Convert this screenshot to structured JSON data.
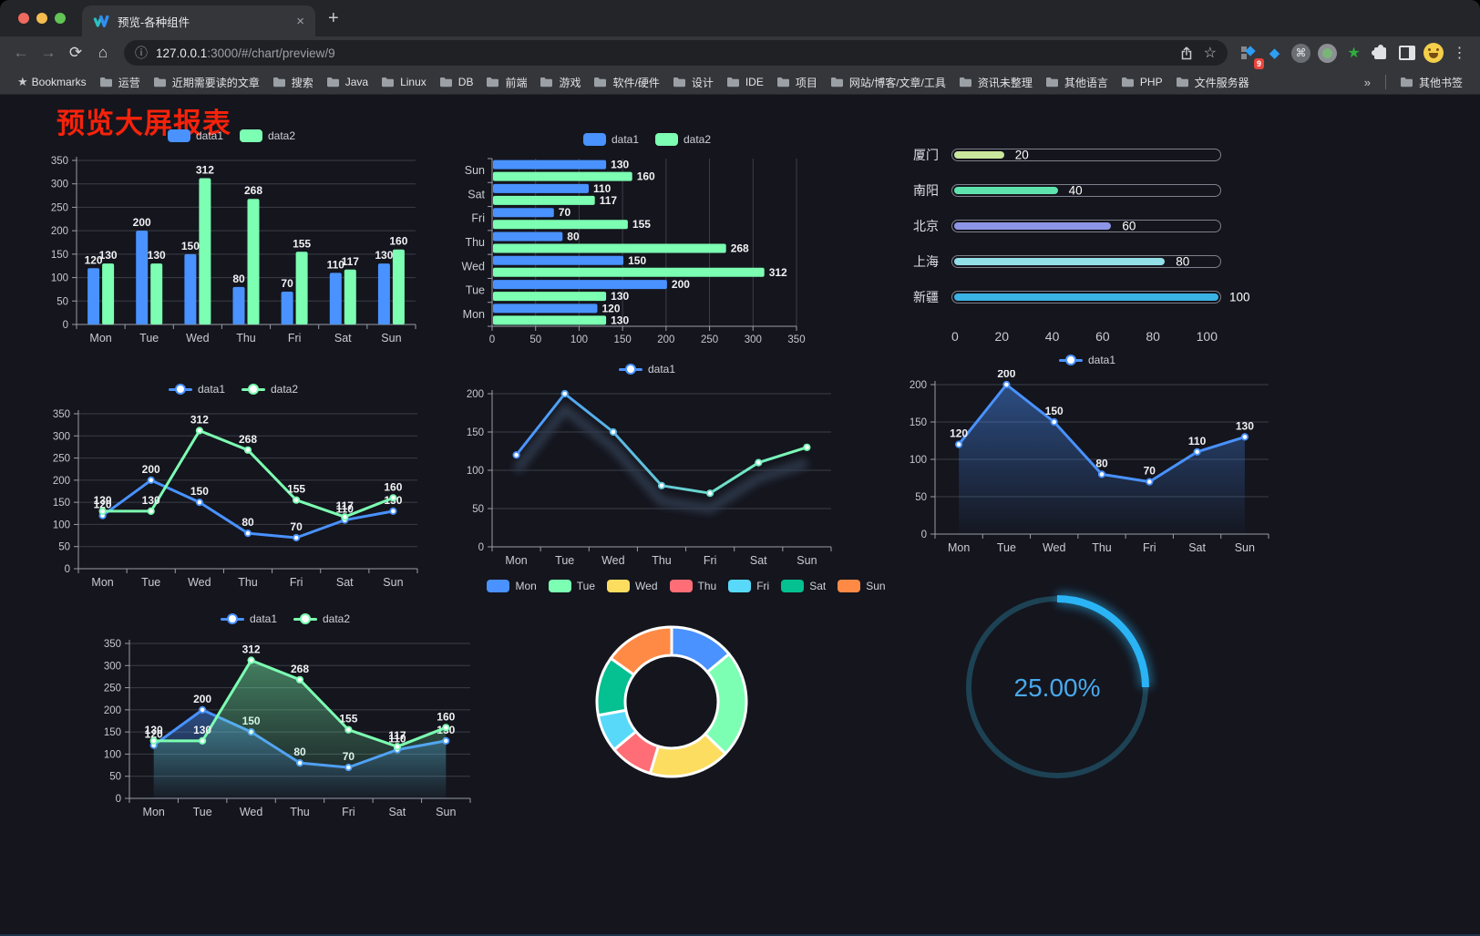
{
  "browser": {
    "tab": {
      "title": "预览-各种组件"
    },
    "icons": {
      "back": "←",
      "forward": "→",
      "reload": "⟳",
      "home": "⌂",
      "info": "ⓘ",
      "star": "☆",
      "menu": "⋮",
      "close_tab": "×",
      "new_tab": "+",
      "gem": "◆",
      "command": "⌘",
      "green_star": "★",
      "bookmarks_star": "★"
    },
    "address": {
      "host": "127.0.0.1",
      "path": ":3000/#/chart/preview/9"
    },
    "extensions_badge": "9",
    "bookmarks_bar": {
      "label": "Bookmarks",
      "items": [
        "运营",
        "近期需要读的文章",
        "搜索",
        "Java",
        "Linux",
        "DB",
        "前端",
        "游戏",
        "软件/硬件",
        "设计",
        "IDE",
        "项目",
        "网站/博客/文章/工具",
        "资讯未整理",
        "其他语言",
        "PHP",
        "文件服务器"
      ],
      "overflow": "»",
      "other": "其他书签"
    }
  },
  "page": {
    "title": "预览大屏报表",
    "title_color": "#f5220b"
  },
  "chart_data": [
    {
      "name": "grouped-bar",
      "type": "bar",
      "legend_position": "top",
      "grid": true,
      "categories": [
        "Mon",
        "Tue",
        "Wed",
        "Thu",
        "Fri",
        "Sat",
        "Sun"
      ],
      "ylim": [
        0,
        350
      ],
      "ytick": 50,
      "labels": true,
      "series": [
        {
          "name": "data1",
          "color": "#4992ff",
          "values": [
            120,
            200,
            150,
            80,
            70,
            110,
            130
          ]
        },
        {
          "name": "data2",
          "color": "#7cffb2",
          "values": [
            130,
            130,
            312,
            268,
            155,
            117,
            160
          ]
        }
      ]
    },
    {
      "name": "horizontal-bar",
      "type": "hbar",
      "legend_position": "top",
      "grid": true,
      "categories": [
        "Sun",
        "Sat",
        "Fri",
        "Thu",
        "Wed",
        "Tue",
        "Mon"
      ],
      "xlim": [
        0,
        350
      ],
      "xtick": 50,
      "labels": true,
      "series": [
        {
          "name": "data1",
          "color": "#4992ff",
          "values": [
            130,
            110,
            70,
            80,
            150,
            200,
            120
          ]
        },
        {
          "name": "data2",
          "color": "#7cffb2",
          "values": [
            160,
            117,
            155,
            268,
            312,
            130,
            130
          ]
        }
      ]
    },
    {
      "name": "progress-bars",
      "type": "progress",
      "max": 100,
      "xticks": [
        0,
        20,
        40,
        60,
        80,
        100
      ],
      "items": [
        {
          "label": "厦门",
          "value": 20,
          "color": "#c8e69c"
        },
        {
          "label": "南阳",
          "value": 40,
          "color": "#5fe3ae"
        },
        {
          "label": "北京",
          "value": 60,
          "color": "#8d95e6"
        },
        {
          "label": "上海",
          "value": 80,
          "color": "#93dfe8"
        },
        {
          "label": "新疆",
          "value": 100,
          "color": "#3ab2e4"
        }
      ]
    },
    {
      "name": "multi-line",
      "type": "line",
      "legend_position": "top",
      "grid": true,
      "categories": [
        "Mon",
        "Tue",
        "Wed",
        "Thu",
        "Fri",
        "Sat",
        "Sun"
      ],
      "ylim": [
        0,
        350
      ],
      "ytick": 50,
      "labels": true,
      "series": [
        {
          "name": "data1",
          "color": "#4992ff",
          "values": [
            120,
            200,
            150,
            80,
            70,
            110,
            130
          ]
        },
        {
          "name": "data2",
          "color": "#7cffb2",
          "values": [
            130,
            130,
            312,
            268,
            155,
            117,
            160
          ]
        }
      ]
    },
    {
      "name": "gradient-line",
      "type": "line",
      "legend_position": "top",
      "grid": true,
      "shadow": true,
      "categories": [
        "Mon",
        "Tue",
        "Wed",
        "Thu",
        "Fri",
        "Sat",
        "Sun"
      ],
      "ylim": [
        0,
        200
      ],
      "ytick": 50,
      "labels": false,
      "series": [
        {
          "name": "data1",
          "color": [
            "#4992ff",
            "#7cffb2"
          ],
          "values": [
            120,
            200,
            150,
            80,
            70,
            110,
            130
          ]
        }
      ]
    },
    {
      "name": "area-line",
      "type": "line",
      "legend_position": "top",
      "grid": true,
      "categories": [
        "Mon",
        "Tue",
        "Wed",
        "Thu",
        "Fri",
        "Sat",
        "Sun"
      ],
      "ylim": [
        0,
        200
      ],
      "ytick": 50,
      "labels": true,
      "series": [
        {
          "name": "data1",
          "color": "#4992ff",
          "values": [
            120,
            200,
            150,
            80,
            70,
            110,
            130
          ],
          "area": true
        }
      ]
    },
    {
      "name": "multi-area-line",
      "type": "line",
      "legend_position": "top",
      "grid": true,
      "categories": [
        "Mon",
        "Tue",
        "Wed",
        "Thu",
        "Fri",
        "Sat",
        "Sun"
      ],
      "ylim": [
        0,
        350
      ],
      "ytick": 50,
      "labels": true,
      "series": [
        {
          "name": "data1",
          "color": "#4992ff",
          "values": [
            120,
            200,
            150,
            80,
            70,
            110,
            130
          ],
          "area": true
        },
        {
          "name": "data2",
          "color": "#7cffb2",
          "values": [
            130,
            130,
            312,
            268,
            155,
            117,
            160
          ],
          "area": true
        }
      ]
    },
    {
      "name": "donut",
      "type": "pie",
      "legend_position": "top",
      "categories": [
        "Mon",
        "Tue",
        "Wed",
        "Thu",
        "Fri",
        "Sat",
        "Sun"
      ],
      "values": [
        120,
        200,
        150,
        80,
        70,
        110,
        130
      ],
      "colors": [
        "#4992ff",
        "#7cffb2",
        "#fddd60",
        "#ff6e76",
        "#58d9f9",
        "#05c091",
        "#ff8a45"
      ],
      "radius": [
        51,
        82
      ],
      "center": [
        197,
        116
      ]
    },
    {
      "name": "gauge",
      "type": "gauge",
      "value_text": "25.00%",
      "percent": 25,
      "color": "#2ab4f5",
      "track": "#1d4254",
      "text_color": "#49a9ee"
    }
  ]
}
